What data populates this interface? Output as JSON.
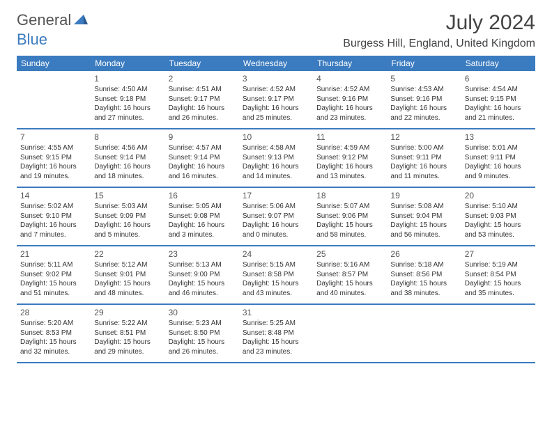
{
  "logo": {
    "text1": "General",
    "text2": "Blue"
  },
  "title": "July 2024",
  "location": "Burgess Hill, England, United Kingdom",
  "colors": {
    "header_bg": "#3b7bbf",
    "header_text": "#ffffff",
    "border": "#3b7bbf",
    "body_text": "#333333",
    "daynum_text": "#555555",
    "logo_gray": "#555555",
    "logo_blue": "#3b7bbf",
    "background": "#ffffff"
  },
  "fonts": {
    "title_size": 30,
    "location_size": 16,
    "weekday_size": 12,
    "daynum_size": 12,
    "detail_size": 10
  },
  "weekdays": [
    "Sunday",
    "Monday",
    "Tuesday",
    "Wednesday",
    "Thursday",
    "Friday",
    "Saturday"
  ],
  "weeks": [
    [
      {
        "num": "",
        "sunrise": "",
        "sunset": "",
        "daylight1": "",
        "daylight2": ""
      },
      {
        "num": "1",
        "sunrise": "Sunrise: 4:50 AM",
        "sunset": "Sunset: 9:18 PM",
        "daylight1": "Daylight: 16 hours",
        "daylight2": "and 27 minutes."
      },
      {
        "num": "2",
        "sunrise": "Sunrise: 4:51 AM",
        "sunset": "Sunset: 9:17 PM",
        "daylight1": "Daylight: 16 hours",
        "daylight2": "and 26 minutes."
      },
      {
        "num": "3",
        "sunrise": "Sunrise: 4:52 AM",
        "sunset": "Sunset: 9:17 PM",
        "daylight1": "Daylight: 16 hours",
        "daylight2": "and 25 minutes."
      },
      {
        "num": "4",
        "sunrise": "Sunrise: 4:52 AM",
        "sunset": "Sunset: 9:16 PM",
        "daylight1": "Daylight: 16 hours",
        "daylight2": "and 23 minutes."
      },
      {
        "num": "5",
        "sunrise": "Sunrise: 4:53 AM",
        "sunset": "Sunset: 9:16 PM",
        "daylight1": "Daylight: 16 hours",
        "daylight2": "and 22 minutes."
      },
      {
        "num": "6",
        "sunrise": "Sunrise: 4:54 AM",
        "sunset": "Sunset: 9:15 PM",
        "daylight1": "Daylight: 16 hours",
        "daylight2": "and 21 minutes."
      }
    ],
    [
      {
        "num": "7",
        "sunrise": "Sunrise: 4:55 AM",
        "sunset": "Sunset: 9:15 PM",
        "daylight1": "Daylight: 16 hours",
        "daylight2": "and 19 minutes."
      },
      {
        "num": "8",
        "sunrise": "Sunrise: 4:56 AM",
        "sunset": "Sunset: 9:14 PM",
        "daylight1": "Daylight: 16 hours",
        "daylight2": "and 18 minutes."
      },
      {
        "num": "9",
        "sunrise": "Sunrise: 4:57 AM",
        "sunset": "Sunset: 9:14 PM",
        "daylight1": "Daylight: 16 hours",
        "daylight2": "and 16 minutes."
      },
      {
        "num": "10",
        "sunrise": "Sunrise: 4:58 AM",
        "sunset": "Sunset: 9:13 PM",
        "daylight1": "Daylight: 16 hours",
        "daylight2": "and 14 minutes."
      },
      {
        "num": "11",
        "sunrise": "Sunrise: 4:59 AM",
        "sunset": "Sunset: 9:12 PM",
        "daylight1": "Daylight: 16 hours",
        "daylight2": "and 13 minutes."
      },
      {
        "num": "12",
        "sunrise": "Sunrise: 5:00 AM",
        "sunset": "Sunset: 9:11 PM",
        "daylight1": "Daylight: 16 hours",
        "daylight2": "and 11 minutes."
      },
      {
        "num": "13",
        "sunrise": "Sunrise: 5:01 AM",
        "sunset": "Sunset: 9:11 PM",
        "daylight1": "Daylight: 16 hours",
        "daylight2": "and 9 minutes."
      }
    ],
    [
      {
        "num": "14",
        "sunrise": "Sunrise: 5:02 AM",
        "sunset": "Sunset: 9:10 PM",
        "daylight1": "Daylight: 16 hours",
        "daylight2": "and 7 minutes."
      },
      {
        "num": "15",
        "sunrise": "Sunrise: 5:03 AM",
        "sunset": "Sunset: 9:09 PM",
        "daylight1": "Daylight: 16 hours",
        "daylight2": "and 5 minutes."
      },
      {
        "num": "16",
        "sunrise": "Sunrise: 5:05 AM",
        "sunset": "Sunset: 9:08 PM",
        "daylight1": "Daylight: 16 hours",
        "daylight2": "and 3 minutes."
      },
      {
        "num": "17",
        "sunrise": "Sunrise: 5:06 AM",
        "sunset": "Sunset: 9:07 PM",
        "daylight1": "Daylight: 16 hours",
        "daylight2": "and 0 minutes."
      },
      {
        "num": "18",
        "sunrise": "Sunrise: 5:07 AM",
        "sunset": "Sunset: 9:06 PM",
        "daylight1": "Daylight: 15 hours",
        "daylight2": "and 58 minutes."
      },
      {
        "num": "19",
        "sunrise": "Sunrise: 5:08 AM",
        "sunset": "Sunset: 9:04 PM",
        "daylight1": "Daylight: 15 hours",
        "daylight2": "and 56 minutes."
      },
      {
        "num": "20",
        "sunrise": "Sunrise: 5:10 AM",
        "sunset": "Sunset: 9:03 PM",
        "daylight1": "Daylight: 15 hours",
        "daylight2": "and 53 minutes."
      }
    ],
    [
      {
        "num": "21",
        "sunrise": "Sunrise: 5:11 AM",
        "sunset": "Sunset: 9:02 PM",
        "daylight1": "Daylight: 15 hours",
        "daylight2": "and 51 minutes."
      },
      {
        "num": "22",
        "sunrise": "Sunrise: 5:12 AM",
        "sunset": "Sunset: 9:01 PM",
        "daylight1": "Daylight: 15 hours",
        "daylight2": "and 48 minutes."
      },
      {
        "num": "23",
        "sunrise": "Sunrise: 5:13 AM",
        "sunset": "Sunset: 9:00 PM",
        "daylight1": "Daylight: 15 hours",
        "daylight2": "and 46 minutes."
      },
      {
        "num": "24",
        "sunrise": "Sunrise: 5:15 AM",
        "sunset": "Sunset: 8:58 PM",
        "daylight1": "Daylight: 15 hours",
        "daylight2": "and 43 minutes."
      },
      {
        "num": "25",
        "sunrise": "Sunrise: 5:16 AM",
        "sunset": "Sunset: 8:57 PM",
        "daylight1": "Daylight: 15 hours",
        "daylight2": "and 40 minutes."
      },
      {
        "num": "26",
        "sunrise": "Sunrise: 5:18 AM",
        "sunset": "Sunset: 8:56 PM",
        "daylight1": "Daylight: 15 hours",
        "daylight2": "and 38 minutes."
      },
      {
        "num": "27",
        "sunrise": "Sunrise: 5:19 AM",
        "sunset": "Sunset: 8:54 PM",
        "daylight1": "Daylight: 15 hours",
        "daylight2": "and 35 minutes."
      }
    ],
    [
      {
        "num": "28",
        "sunrise": "Sunrise: 5:20 AM",
        "sunset": "Sunset: 8:53 PM",
        "daylight1": "Daylight: 15 hours",
        "daylight2": "and 32 minutes."
      },
      {
        "num": "29",
        "sunrise": "Sunrise: 5:22 AM",
        "sunset": "Sunset: 8:51 PM",
        "daylight1": "Daylight: 15 hours",
        "daylight2": "and 29 minutes."
      },
      {
        "num": "30",
        "sunrise": "Sunrise: 5:23 AM",
        "sunset": "Sunset: 8:50 PM",
        "daylight1": "Daylight: 15 hours",
        "daylight2": "and 26 minutes."
      },
      {
        "num": "31",
        "sunrise": "Sunrise: 5:25 AM",
        "sunset": "Sunset: 8:48 PM",
        "daylight1": "Daylight: 15 hours",
        "daylight2": "and 23 minutes."
      },
      {
        "num": "",
        "sunrise": "",
        "sunset": "",
        "daylight1": "",
        "daylight2": ""
      },
      {
        "num": "",
        "sunrise": "",
        "sunset": "",
        "daylight1": "",
        "daylight2": ""
      },
      {
        "num": "",
        "sunrise": "",
        "sunset": "",
        "daylight1": "",
        "daylight2": ""
      }
    ]
  ]
}
